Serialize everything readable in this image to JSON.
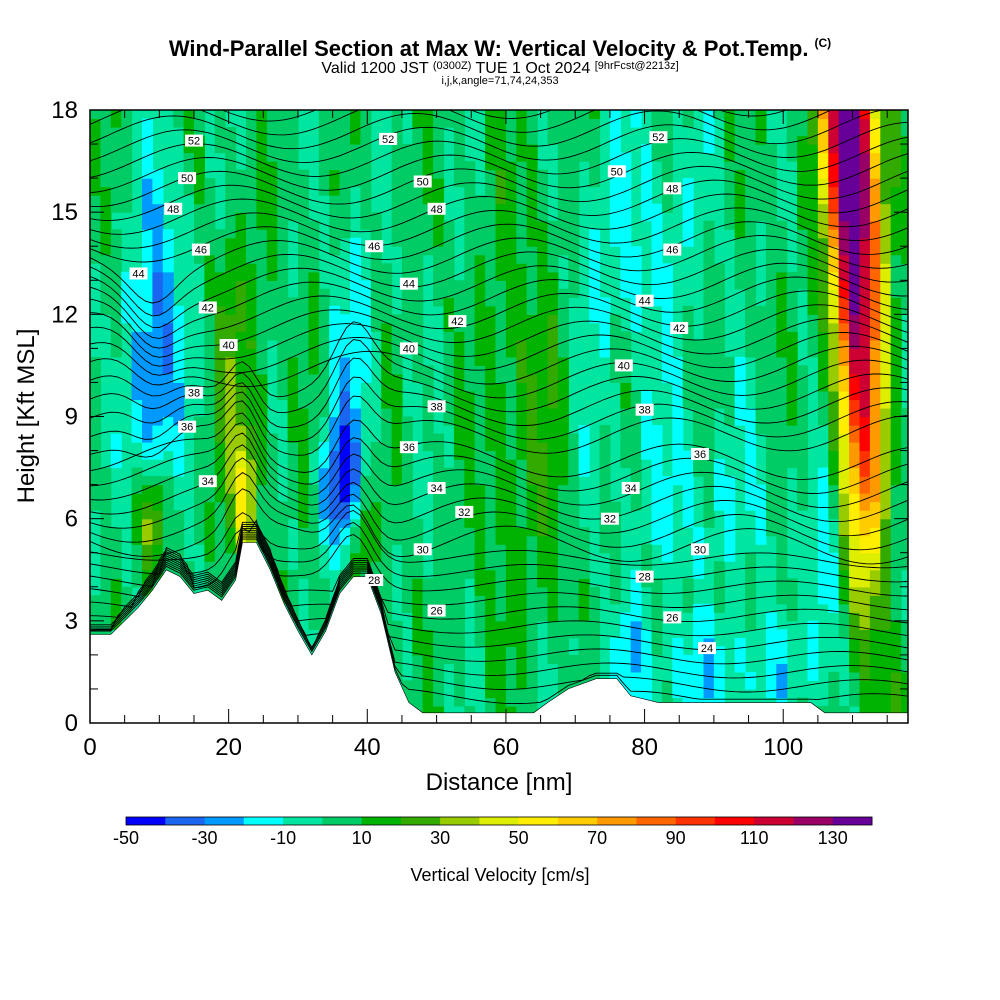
{
  "header": {
    "title": "Wind-Parallel Section at Max W: Vertical Velocity & Pot.Temp.",
    "title_tag": "(C)",
    "subtitle_a": "Valid 1200 JST",
    "subtitle_b": "(0300Z)",
    "subtitle_c": "TUE 1 Oct 2024",
    "subtitle_d": "[9hrFcst@2213z]",
    "subtitle2": "i,j,k,angle=71,74,24,353"
  },
  "chart_data": {
    "type": "heatmap",
    "xlabel": "Distance [nm]",
    "ylabel": "Height [Kft MSL]",
    "xlim": [
      0,
      118
    ],
    "ylim": [
      0,
      18
    ],
    "xticks": [
      0,
      20,
      40,
      60,
      80,
      100
    ],
    "yticks": [
      0,
      3,
      6,
      9,
      12,
      15,
      18
    ],
    "colorbar": {
      "label": "Vertical Velocity [cm/s]",
      "ticks": [
        -50,
        -30,
        -10,
        10,
        30,
        50,
        70,
        90,
        110,
        130
      ],
      "levels": [
        -50,
        -40,
        -30,
        -20,
        -10,
        0,
        10,
        20,
        30,
        40,
        50,
        60,
        70,
        80,
        90,
        100,
        110,
        120,
        130,
        140
      ],
      "colors": [
        "#0000ff",
        "#1a66f0",
        "#0099ff",
        "#00ffff",
        "#00e6a0",
        "#00cc66",
        "#00b300",
        "#33aa00",
        "#99cc00",
        "#ddee00",
        "#ffee00",
        "#ffcc00",
        "#ff9900",
        "#ff6600",
        "#ff3300",
        "#ff0000",
        "#cc0033",
        "#990066",
        "#660099"
      ]
    },
    "terrain": [
      [
        0,
        2.6
      ],
      [
        3,
        2.6
      ],
      [
        5,
        3.0
      ],
      [
        7,
        3.4
      ],
      [
        9,
        3.9
      ],
      [
        11,
        4.5
      ],
      [
        13,
        4.3
      ],
      [
        15,
        3.8
      ],
      [
        17,
        3.9
      ],
      [
        19,
        3.6
      ],
      [
        21,
        4.2
      ],
      [
        22,
        5.3
      ],
      [
        24,
        5.3
      ],
      [
        26,
        4.5
      ],
      [
        28,
        3.5
      ],
      [
        30,
        2.7
      ],
      [
        32,
        2.0
      ],
      [
        34,
        2.7
      ],
      [
        36,
        3.8
      ],
      [
        38,
        4.3
      ],
      [
        40,
        4.3
      ],
      [
        42,
        3.2
      ],
      [
        44,
        1.5
      ],
      [
        46,
        0.6
      ],
      [
        48,
        0.3
      ],
      [
        55,
        0.3
      ],
      [
        64,
        0.3
      ],
      [
        66,
        0.6
      ],
      [
        69,
        1.0
      ],
      [
        73,
        1.3
      ],
      [
        76,
        1.3
      ],
      [
        78,
        0.8
      ],
      [
        82,
        0.6
      ],
      [
        104,
        0.6
      ],
      [
        106,
        0.3
      ],
      [
        118,
        0.3
      ]
    ],
    "theta_labels": [
      {
        "v": "52",
        "x": 15,
        "y": 17.1
      },
      {
        "v": "52",
        "x": 43,
        "y": 17.15
      },
      {
        "v": "52",
        "x": 82,
        "y": 17.2
      },
      {
        "v": "50",
        "x": 14,
        "y": 16.0
      },
      {
        "v": "50",
        "x": 48,
        "y": 15.9
      },
      {
        "v": "50",
        "x": 76,
        "y": 16.2
      },
      {
        "v": "48",
        "x": 12,
        "y": 15.1
      },
      {
        "v": "48",
        "x": 50,
        "y": 15.1
      },
      {
        "v": "48",
        "x": 84,
        "y": 15.7
      },
      {
        "v": "46",
        "x": 16,
        "y": 13.9
      },
      {
        "v": "46",
        "x": 41,
        "y": 14.0
      },
      {
        "v": "46",
        "x": 84,
        "y": 13.9
      },
      {
        "v": "44",
        "x": 7,
        "y": 13.2
      },
      {
        "v": "44",
        "x": 46,
        "y": 12.9
      },
      {
        "v": "44",
        "x": 80,
        "y": 12.4
      },
      {
        "v": "42",
        "x": 17,
        "y": 12.2
      },
      {
        "v": "42",
        "x": 53,
        "y": 11.8
      },
      {
        "v": "42",
        "x": 85,
        "y": 11.6
      },
      {
        "v": "40",
        "x": 20,
        "y": 11.1
      },
      {
        "v": "40",
        "x": 46,
        "y": 11.0
      },
      {
        "v": "40",
        "x": 77,
        "y": 10.5
      },
      {
        "v": "38",
        "x": 15,
        "y": 9.7
      },
      {
        "v": "38",
        "x": 50,
        "y": 9.3
      },
      {
        "v": "38",
        "x": 80,
        "y": 9.2
      },
      {
        "v": "36",
        "x": 14,
        "y": 8.7
      },
      {
        "v": "36",
        "x": 46,
        "y": 8.1
      },
      {
        "v": "36",
        "x": 88,
        "y": 7.9
      },
      {
        "v": "34",
        "x": 17,
        "y": 7.1
      },
      {
        "v": "34",
        "x": 50,
        "y": 6.9
      },
      {
        "v": "34",
        "x": 78,
        "y": 6.9
      },
      {
        "v": "32",
        "x": 54,
        "y": 6.2
      },
      {
        "v": "32",
        "x": 75,
        "y": 6.0
      },
      {
        "v": "30",
        "x": 48,
        "y": 5.1
      },
      {
        "v": "30",
        "x": 88,
        "y": 5.1
      },
      {
        "v": "28",
        "x": 41,
        "y": 4.2
      },
      {
        "v": "28",
        "x": 80,
        "y": 4.3
      },
      {
        "v": "26",
        "x": 50,
        "y": 3.3
      },
      {
        "v": "26",
        "x": 84,
        "y": 3.1
      },
      {
        "v": "24",
        "x": 89,
        "y": 2.2
      }
    ]
  }
}
